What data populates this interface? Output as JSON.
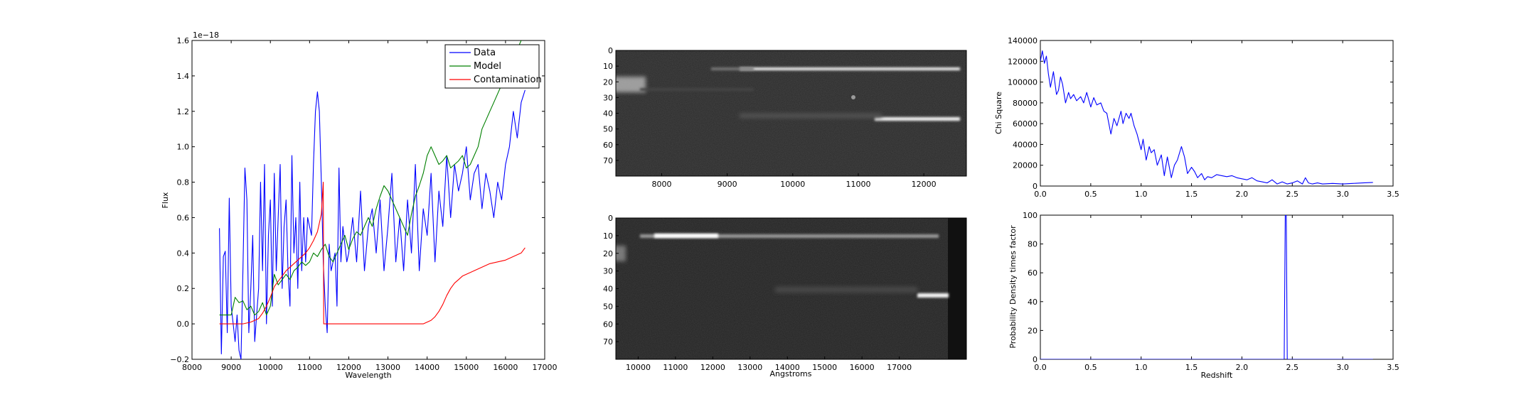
{
  "figure": {
    "background": "#ffffff"
  },
  "chart_data": [
    {
      "type": "line",
      "xlabel": "Wavelength",
      "ylabel": "Flux",
      "offset_text": "1e−18",
      "xlim": [
        8000,
        17000
      ],
      "ylim": [
        -0.2,
        1.6
      ],
      "xticks": [
        "8000",
        "9000",
        "10000",
        "11000",
        "12000",
        "13000",
        "14000",
        "15000",
        "16000",
        "17000"
      ],
      "yticks": [
        "−0.2",
        "0.0",
        "0.2",
        "0.4",
        "0.6",
        "0.8",
        "1.0",
        "1.2",
        "1.4",
        "1.6"
      ],
      "legend": {
        "placement": "top-right",
        "entries": [
          "Data",
          "Model",
          "Contamination"
        ]
      },
      "series": [
        {
          "name": "Data",
          "color": "#0000ff",
          "x": [
            8700,
            8750,
            8800,
            8850,
            8900,
            8950,
            9000,
            9050,
            9100,
            9150,
            9200,
            9250,
            9300,
            9350,
            9400,
            9450,
            9500,
            9550,
            9600,
            9650,
            9700,
            9750,
            9800,
            9850,
            9900,
            9950,
            10000,
            10050,
            10100,
            10150,
            10200,
            10250,
            10300,
            10350,
            10400,
            10450,
            10500,
            10550,
            10600,
            10650,
            10700,
            10750,
            10800,
            10850,
            10900,
            10950,
            11000,
            11050,
            11100,
            11150,
            11200,
            11250,
            11300,
            11350,
            11400,
            11450,
            11500,
            11550,
            11600,
            11650,
            11700,
            11750,
            11800,
            11850,
            11900,
            11950,
            12000,
            12100,
            12200,
            12300,
            12400,
            12500,
            12600,
            12700,
            12800,
            12900,
            13000,
            13100,
            13200,
            13300,
            13400,
            13500,
            13600,
            13700,
            13800,
            13900,
            14000,
            14100,
            14200,
            14300,
            14400,
            14500,
            14600,
            14700,
            14800,
            14900,
            15000,
            15100,
            15200,
            15300,
            15400,
            15500,
            15600,
            15700,
            15800,
            15900,
            16000,
            16100,
            16200,
            16300,
            16400,
            16500
          ],
          "values": [
            0.54,
            -0.17,
            0.38,
            0.41,
            -0.05,
            0.71,
            0.1,
            0.0,
            -0.1,
            0.05,
            -0.15,
            -0.2,
            0.3,
            0.88,
            0.7,
            -0.05,
            0.2,
            0.5,
            -0.1,
            0.05,
            0.2,
            0.8,
            0.3,
            0.9,
            0.0,
            0.5,
            0.7,
            0.1,
            0.85,
            0.3,
            0.6,
            0.9,
            0.2,
            0.55,
            0.7,
            0.3,
            0.1,
            0.95,
            0.4,
            0.6,
            0.2,
            0.8,
            0.3,
            0.6,
            0.35,
            0.6,
            0.55,
            0.5,
            0.9,
            1.2,
            1.31,
            1.2,
            0.8,
            0.35,
            0.1,
            -0.05,
            0.45,
            0.3,
            0.35,
            0.4,
            0.1,
            0.88,
            0.35,
            0.55,
            0.45,
            0.35,
            0.4,
            0.6,
            0.35,
            0.75,
            0.3,
            0.55,
            0.65,
            0.4,
            0.7,
            0.3,
            0.55,
            0.85,
            0.35,
            0.6,
            0.3,
            0.7,
            0.4,
            0.9,
            0.3,
            0.65,
            0.5,
            0.85,
            0.35,
            0.75,
            0.55,
            0.95,
            0.6,
            0.9,
            0.75,
            0.85,
            1.0,
            0.7,
            0.85,
            0.9,
            0.65,
            0.85,
            0.75,
            0.6,
            0.8,
            0.7,
            0.9,
            1.0,
            1.2,
            1.05,
            1.25,
            1.32
          ]
        },
        {
          "name": "Model",
          "color": "#008000",
          "x": [
            8700,
            8800,
            8900,
            9000,
            9100,
            9200,
            9300,
            9400,
            9500,
            9600,
            9700,
            9800,
            9900,
            10000,
            10100,
            10200,
            10300,
            10400,
            10500,
            10600,
            10700,
            10800,
            10900,
            11000,
            11100,
            11200,
            11300,
            11400,
            11500,
            11600,
            11700,
            11800,
            11900,
            12000,
            12100,
            12200,
            12300,
            12400,
            12500,
            12600,
            12700,
            12800,
            12900,
            13000,
            13100,
            13200,
            13300,
            13400,
            13500,
            13600,
            13700,
            13800,
            13900,
            14000,
            14100,
            14200,
            14300,
            14400,
            14500,
            14600,
            14700,
            14800,
            14900,
            15000,
            15100,
            15200,
            15300,
            15400,
            15500,
            15600,
            15700,
            15800,
            15900,
            16000,
            16100,
            16200,
            16300,
            16400,
            16500
          ],
          "values": [
            0.05,
            0.05,
            0.05,
            0.05,
            0.15,
            0.12,
            0.13,
            0.08,
            0.1,
            0.05,
            0.07,
            0.12,
            0.05,
            0.1,
            0.28,
            0.22,
            0.25,
            0.28,
            0.25,
            0.3,
            0.32,
            0.35,
            0.33,
            0.35,
            0.4,
            0.38,
            0.42,
            0.45,
            0.38,
            0.35,
            0.4,
            0.45,
            0.5,
            0.42,
            0.48,
            0.52,
            0.5,
            0.55,
            0.6,
            0.55,
            0.65,
            0.72,
            0.78,
            0.75,
            0.7,
            0.65,
            0.6,
            0.55,
            0.5,
            0.62,
            0.72,
            0.78,
            0.85,
            0.95,
            1.0,
            0.95,
            0.9,
            0.92,
            0.95,
            0.88,
            0.9,
            0.92,
            0.95,
            0.88,
            0.9,
            0.95,
            1.0,
            1.1,
            1.15,
            1.2,
            1.25,
            1.3,
            1.35,
            1.4,
            1.45,
            1.5,
            1.55,
            1.6,
            1.65
          ]
        },
        {
          "name": "Contamination",
          "color": "#ff0000",
          "x": [
            8700,
            9000,
            9300,
            9500,
            9700,
            9800,
            9900,
            10000,
            10050,
            10100,
            10200,
            10300,
            10400,
            10500,
            10600,
            10700,
            10800,
            10900,
            11000,
            11100,
            11200,
            11300,
            11350,
            11360,
            11400,
            11600,
            11800,
            12000,
            12500,
            13000,
            13500,
            13800,
            13900,
            14000,
            14100,
            14200,
            14300,
            14400,
            14500,
            14600,
            14700,
            14800,
            14900,
            15000,
            15200,
            15400,
            15600,
            15800,
            16000,
            16200,
            16400,
            16500
          ],
          "values": [
            0.0,
            0.0,
            0.0,
            0.01,
            0.03,
            0.06,
            0.1,
            0.15,
            0.18,
            0.21,
            0.24,
            0.27,
            0.3,
            0.32,
            0.34,
            0.36,
            0.38,
            0.4,
            0.43,
            0.47,
            0.52,
            0.62,
            0.8,
            0.0,
            0.0,
            0.0,
            0.0,
            0.0,
            0.0,
            0.0,
            0.0,
            0.0,
            0.0,
            0.01,
            0.02,
            0.04,
            0.07,
            0.11,
            0.16,
            0.2,
            0.23,
            0.25,
            0.27,
            0.28,
            0.3,
            0.32,
            0.34,
            0.35,
            0.36,
            0.38,
            0.4,
            0.43
          ]
        }
      ]
    },
    {
      "type": "heatmap",
      "xticks": [
        "8000",
        "9000",
        "10000",
        "11000",
        "12000"
      ],
      "xtick_values": [
        8000,
        9000,
        10000,
        11000,
        12000
      ],
      "xlim": [
        7300,
        12650
      ],
      "yticks": [
        "0",
        "10",
        "20",
        "30",
        "40",
        "50",
        "60",
        "70"
      ],
      "ylim": [
        0,
        80
      ],
      "xlabel": ""
    },
    {
      "type": "heatmap",
      "xticks": [
        "10000",
        "11000",
        "12000",
        "13000",
        "14000",
        "15000",
        "16000",
        "17000"
      ],
      "xtick_values": [
        10000,
        11000,
        12000,
        13000,
        14000,
        15000,
        16000,
        17000
      ],
      "xlim": [
        9400,
        18800
      ],
      "yticks": [
        "0",
        "10",
        "20",
        "30",
        "40",
        "50",
        "60",
        "70"
      ],
      "ylim": [
        0,
        80
      ],
      "xlabel": "Angstroms"
    },
    {
      "type": "line",
      "ylabel": "Chi Square",
      "xlabel": "",
      "xlim": [
        0.0,
        3.5
      ],
      "ylim": [
        0,
        140000
      ],
      "xticks": [
        "0.0",
        "0.5",
        "1.0",
        "1.5",
        "2.0",
        "2.5",
        "3.0",
        "3.5"
      ],
      "yticks": [
        "0",
        "20000",
        "40000",
        "60000",
        "80000",
        "100000",
        "120000",
        "140000"
      ],
      "series": [
        {
          "color": "#0000ff",
          "x": [
            0.0,
            0.02,
            0.04,
            0.06,
            0.08,
            0.1,
            0.13,
            0.16,
            0.18,
            0.2,
            0.22,
            0.25,
            0.28,
            0.3,
            0.33,
            0.36,
            0.4,
            0.43,
            0.46,
            0.5,
            0.53,
            0.56,
            0.6,
            0.63,
            0.66,
            0.7,
            0.73,
            0.76,
            0.8,
            0.82,
            0.85,
            0.88,
            0.9,
            0.93,
            0.96,
            1.0,
            1.02,
            1.05,
            1.08,
            1.1,
            1.13,
            1.16,
            1.2,
            1.23,
            1.26,
            1.3,
            1.33,
            1.36,
            1.4,
            1.43,
            1.46,
            1.5,
            1.53,
            1.56,
            1.6,
            1.63,
            1.66,
            1.7,
            1.75,
            1.8,
            1.85,
            1.9,
            1.95,
            2.0,
            2.05,
            2.1,
            2.15,
            2.2,
            2.25,
            2.3,
            2.35,
            2.4,
            2.45,
            2.5,
            2.55,
            2.6,
            2.63,
            2.66,
            2.7,
            2.75,
            2.8,
            2.9,
            3.0,
            3.1,
            3.2,
            3.3
          ],
          "values": [
            120000,
            130000,
            118000,
            125000,
            108000,
            95000,
            110000,
            88000,
            92000,
            105000,
            98000,
            80000,
            90000,
            84000,
            88000,
            82000,
            86000,
            80000,
            90000,
            76000,
            85000,
            78000,
            80000,
            72000,
            70000,
            50000,
            65000,
            58000,
            72000,
            60000,
            70000,
            65000,
            70000,
            58000,
            50000,
            35000,
            45000,
            25000,
            38000,
            32000,
            35000,
            20000,
            30000,
            10000,
            28000,
            8000,
            20000,
            25000,
            38000,
            28000,
            12000,
            18000,
            14000,
            8000,
            12000,
            6000,
            9000,
            8000,
            11000,
            10000,
            9000,
            10000,
            8000,
            7000,
            6000,
            8000,
            5000,
            4000,
            3000,
            6000,
            2000,
            4000,
            2000,
            3000,
            5000,
            2000,
            8000,
            3000,
            2000,
            3000,
            2000,
            2500,
            2000,
            2500,
            3000,
            3500
          ]
        }
      ]
    },
    {
      "type": "line",
      "ylabel": "Probability Density times factor",
      "xlabel": "Redshift",
      "xlim": [
        0.0,
        3.5
      ],
      "ylim": [
        0,
        100
      ],
      "xticks": [
        "0.0",
        "0.5",
        "1.0",
        "1.5",
        "2.0",
        "2.5",
        "3.0",
        "3.5"
      ],
      "yticks": [
        "0",
        "20",
        "40",
        "60",
        "80",
        "100"
      ],
      "series": [
        {
          "color": "#0000ff",
          "x": [
            0.0,
            2.4,
            2.42,
            2.43,
            2.44,
            2.45,
            3.3
          ],
          "values": [
            0,
            0,
            0,
            100,
            100,
            0,
            0
          ]
        }
      ]
    }
  ]
}
